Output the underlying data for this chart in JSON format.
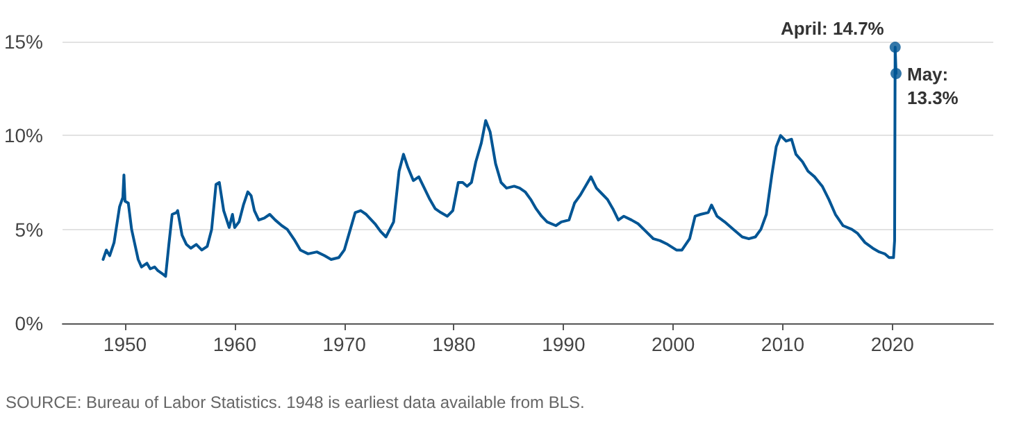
{
  "chart_data": {
    "type": "line",
    "annotations": [
      {
        "text": "April: 14.7%",
        "x": 2020.25,
        "y": 14.7
      },
      {
        "text": "May: 13.3%",
        "x": 2020.33,
        "y": 13.3
      },
      "SOURCE: Bureau of Labor Statistics. 1948 is earliest data available from BLS."
    ],
    "x": [
      1948.0,
      1948.3,
      1948.6,
      1949.0,
      1949.5,
      1949.8,
      1949.9,
      1950.0,
      1950.3,
      1950.6,
      1950.9,
      1951.2,
      1951.5,
      1952.0,
      1952.3,
      1952.7,
      1953.0,
      1953.5,
      1953.7,
      1954.0,
      1954.3,
      1954.7,
      1954.8,
      1955.2,
      1955.6,
      1956.0,
      1956.5,
      1957.0,
      1957.5,
      1957.9,
      1958.3,
      1958.6,
      1959.0,
      1959.5,
      1959.8,
      1960.0,
      1960.4,
      1960.8,
      1961.2,
      1961.5,
      1961.8,
      1962.2,
      1962.7,
      1963.2,
      1963.7,
      1964.3,
      1964.8,
      1965.5,
      1966.0,
      1966.7,
      1967.5,
      1968.2,
      1968.8,
      1969.5,
      1970.0,
      1970.5,
      1971.0,
      1971.5,
      1972.0,
      1972.8,
      1973.3,
      1973.8,
      1974.5,
      1975.0,
      1975.4,
      1975.8,
      1976.3,
      1976.8,
      1977.3,
      1977.8,
      1978.3,
      1978.8,
      1979.4,
      1979.9,
      1980.4,
      1980.8,
      1981.2,
      1981.6,
      1982.0,
      1982.5,
      1982.9,
      1983.3,
      1983.8,
      1984.3,
      1984.8,
      1985.5,
      1986.0,
      1986.5,
      1987.0,
      1987.5,
      1988.0,
      1988.5,
      1989.3,
      1989.8,
      1990.5,
      1991.0,
      1991.5,
      1992.0,
      1992.5,
      1993.0,
      1993.5,
      1994.0,
      1994.5,
      1995.0,
      1995.5,
      1996.2,
      1996.8,
      1997.5,
      1998.2,
      1998.8,
      1999.5,
      2000.3,
      2000.8,
      2001.5,
      2002.0,
      2002.5,
      2003.2,
      2003.5,
      2004.0,
      2004.7,
      2005.5,
      2006.3,
      2006.9,
      2007.5,
      2008.0,
      2008.5,
      2009.0,
      2009.4,
      2009.8,
      2010.3,
      2010.8,
      2011.2,
      2011.8,
      2012.3,
      2012.9,
      2013.6,
      2014.2,
      2014.8,
      2015.5,
      2016.3,
      2016.8,
      2017.5,
      2018.2,
      2018.8,
      2019.3,
      2019.7,
      2020.1,
      2020.2,
      2020.25,
      2020.33
    ],
    "series": [
      {
        "color": "#005594",
        "values": [
          3.4,
          3.9,
          3.6,
          4.3,
          6.2,
          6.7,
          7.9,
          6.5,
          6.4,
          5.0,
          4.2,
          3.4,
          3.0,
          3.2,
          2.9,
          3.0,
          2.8,
          2.6,
          2.5,
          4.2,
          5.8,
          5.9,
          6.0,
          4.7,
          4.2,
          4.0,
          4.2,
          3.9,
          4.1,
          5.0,
          7.4,
          7.5,
          6.0,
          5.1,
          5.8,
          5.1,
          5.4,
          6.3,
          7.0,
          6.8,
          6.0,
          5.5,
          5.6,
          5.8,
          5.5,
          5.2,
          5.0,
          4.4,
          3.9,
          3.7,
          3.8,
          3.6,
          3.4,
          3.5,
          3.9,
          4.9,
          5.9,
          6.0,
          5.8,
          5.3,
          4.9,
          4.6,
          5.4,
          8.1,
          9.0,
          8.3,
          7.6,
          7.8,
          7.2,
          6.6,
          6.1,
          5.9,
          5.7,
          6.0,
          7.5,
          7.5,
          7.3,
          7.5,
          8.6,
          9.6,
          10.8,
          10.2,
          8.5,
          7.5,
          7.2,
          7.3,
          7.2,
          7.0,
          6.6,
          6.1,
          5.7,
          5.4,
          5.2,
          5.4,
          5.5,
          6.4,
          6.8,
          7.3,
          7.8,
          7.2,
          6.9,
          6.6,
          6.1,
          5.5,
          5.7,
          5.5,
          5.3,
          4.9,
          4.5,
          4.4,
          4.2,
          3.9,
          3.9,
          4.5,
          5.7,
          5.8,
          5.9,
          6.3,
          5.7,
          5.4,
          5.0,
          4.6,
          4.5,
          4.6,
          5.0,
          5.8,
          7.9,
          9.4,
          10.0,
          9.7,
          9.8,
          9.0,
          8.6,
          8.1,
          7.8,
          7.3,
          6.6,
          5.8,
          5.2,
          5.0,
          4.8,
          4.3,
          4.0,
          3.8,
          3.7,
          3.5,
          3.5,
          4.4,
          14.7,
          13.3
        ]
      }
    ],
    "xlim": [
      1944.3,
      2029.2
    ],
    "xticks": [
      1950,
      1960,
      1970,
      1980,
      1990,
      2000,
      2010,
      2020
    ],
    "ylim": [
      0,
      15
    ],
    "yticks": [
      {
        "value": 0,
        "label": "0%"
      },
      {
        "value": 5,
        "label": "5%"
      },
      {
        "value": 10,
        "label": "10%"
      },
      {
        "value": 15,
        "label": "15%"
      }
    ],
    "grid": "y",
    "marker": "none",
    "line_style": "solid"
  }
}
